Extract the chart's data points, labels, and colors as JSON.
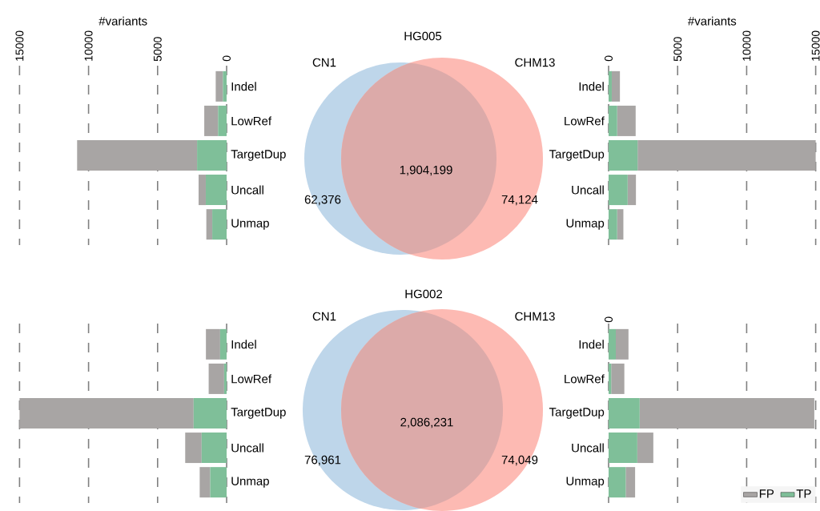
{
  "chart_data": [
    {
      "type": "bar",
      "orientation": "horizontal",
      "stacked": true,
      "categories": [
        "Indel",
        "LowRef",
        "TargetDup",
        "Uncall",
        "Unmap"
      ],
      "xlabel": "#variants",
      "xlim": [
        15000,
        0
      ],
      "xticks": [
        0,
        5000,
        10000,
        15000
      ],
      "grid": "x",
      "series": [
        {
          "color": "#7fbf99",
          "values": [
            270,
            620,
            2140,
            1510,
            1040
          ]
        },
        {
          "color": "#a8a5a4",
          "values": [
            520,
            1000,
            8690,
            520,
            430
          ]
        }
      ]
    },
    {
      "type": "other",
      "title": "HG005",
      "categories": [
        "CN1",
        "CHM13"
      ],
      "annotations": [
        "62,376",
        "1,904,199",
        "74,124"
      ],
      "colors": [
        "#bed6ea",
        "#dcaaa9",
        "#fdbab3"
      ]
    },
    {
      "type": "bar",
      "orientation": "horizontal",
      "stacked": true,
      "categories": [
        "Indel",
        "LowRef",
        "TargetDup",
        "Uncall",
        "Unmap"
      ],
      "xlabel": "#variants",
      "xlim": [
        0,
        15000
      ],
      "xticks": [
        0,
        5000,
        10000,
        15000
      ],
      "grid": "x",
      "series": [
        {
          "color": "#7fbf99",
          "values": [
            230,
            620,
            2100,
            1380,
            620
          ]
        },
        {
          "color": "#a8a5a4",
          "values": [
            590,
            1340,
            12900,
            600,
            450
          ]
        }
      ]
    },
    {
      "type": "bar",
      "orientation": "horizontal",
      "stacked": true,
      "categories": [
        "Indel",
        "LowRef",
        "TargetDup",
        "Uncall",
        "Unmap"
      ],
      "xlim": [
        15000,
        0
      ],
      "xticks": [
        0,
        5000,
        10000,
        15000
      ],
      "grid": "x",
      "tick_labels": "y",
      "series": [
        {
          "color": "#7fbf99",
          "values": [
            470,
            180,
            2390,
            1810,
            1190
          ]
        },
        {
          "color": "#a8a5a4",
          "values": [
            1030,
            1120,
            12610,
            1190,
            760
          ]
        }
      ]
    },
    {
      "type": "other",
      "title": "HG002",
      "categories": [
        "CN1",
        "CHM13"
      ],
      "annotations": [
        "76,961",
        "2,086,231",
        "74,049"
      ],
      "colors": [
        "#bed6ea",
        "#dcaaa9",
        "#fdbab3"
      ]
    },
    {
      "type": "bar",
      "orientation": "horizontal",
      "stacked": true,
      "categories": [
        "Indel",
        "LowRef",
        "TargetDup",
        "Uncall",
        "Unmap"
      ],
      "xlim": [
        0,
        15000
      ],
      "xticks": [
        0,
        5000,
        10000,
        15000
      ],
      "grid": "x",
      "tick_labels": "y",
      "annotations": [
        "0"
      ],
      "legend": "bottom right",
      "series": [
        {
          "name": "TP",
          "color": "#7fbf99",
          "values": [
            520,
            190,
            2250,
            2080,
            1240
          ]
        },
        {
          "name": "FP",
          "color": "#a8a5a4",
          "values": [
            920,
            950,
            12650,
            1160,
            680
          ]
        }
      ]
    }
  ]
}
